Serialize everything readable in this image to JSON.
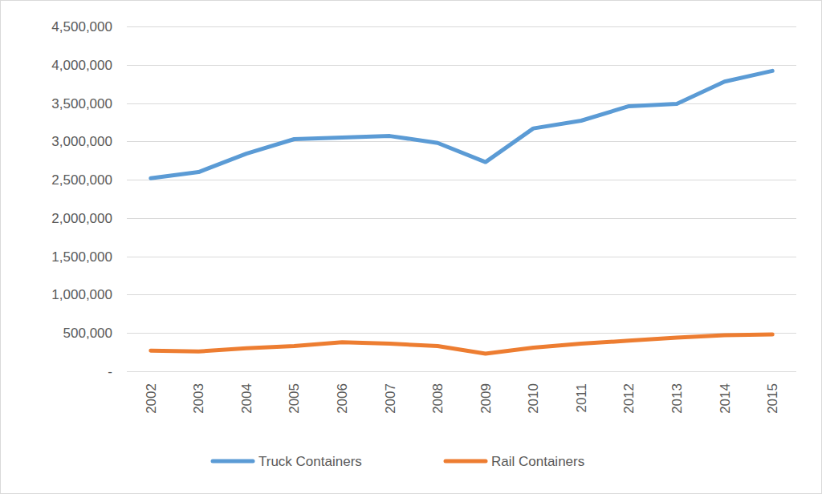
{
  "chart_data": {
    "type": "line",
    "categories": [
      "2002",
      "2003",
      "2004",
      "2005",
      "2006",
      "2007",
      "2008",
      "2009",
      "2010",
      "2011",
      "2012",
      "2013",
      "2014",
      "2015"
    ],
    "series": [
      {
        "name": "Truck Containers",
        "color": "#5b9bd5",
        "values": [
          2520000,
          2600000,
          2840000,
          3030000,
          3050000,
          3070000,
          2980000,
          2730000,
          3170000,
          3270000,
          3460000,
          3490000,
          3780000,
          3920000
        ]
      },
      {
        "name": "Rail Containers",
        "color": "#ed7d31",
        "values": [
          270000,
          260000,
          300000,
          330000,
          380000,
          360000,
          330000,
          230000,
          310000,
          360000,
          400000,
          440000,
          470000,
          480000
        ]
      }
    ],
    "ylim": [
      0,
      4500000
    ],
    "yticks": [
      {
        "value": 0,
        "label": "-"
      },
      {
        "value": 500000,
        "label": "500,000"
      },
      {
        "value": 1000000,
        "label": "1,000,000"
      },
      {
        "value": 1500000,
        "label": "1,500,000"
      },
      {
        "value": 2000000,
        "label": "2,000,000"
      },
      {
        "value": 2500000,
        "label": "2,500,000"
      },
      {
        "value": 3000000,
        "label": "3,000,000"
      },
      {
        "value": 3500000,
        "label": "3,500,000"
      },
      {
        "value": 4000000,
        "label": "4,000,000"
      },
      {
        "value": 4500000,
        "label": "4,500,000"
      }
    ],
    "grid": true,
    "legend": "bottom"
  }
}
